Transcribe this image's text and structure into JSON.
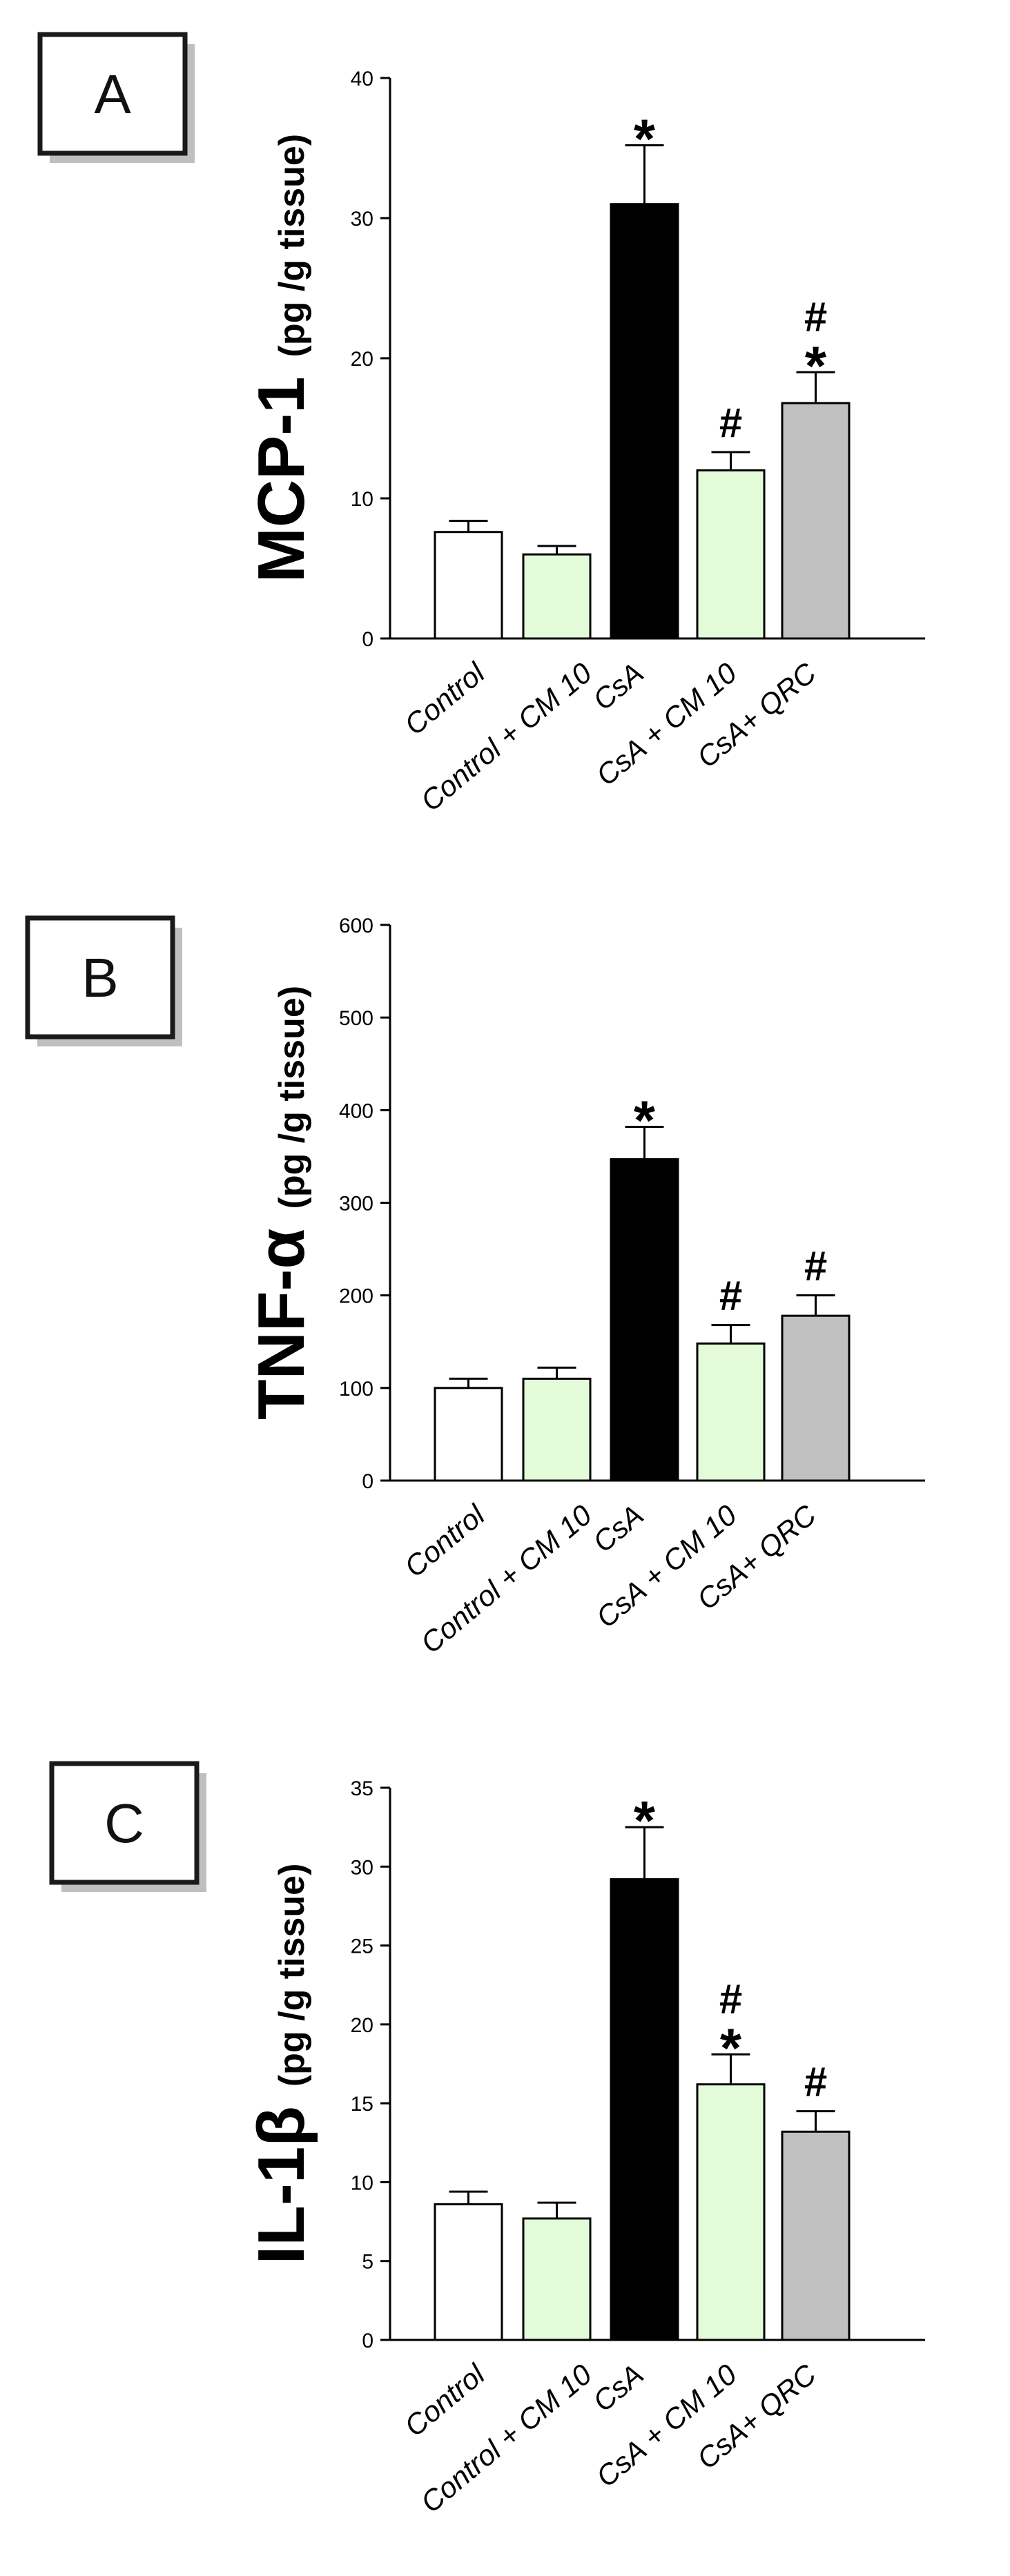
{
  "chart_data": [
    {
      "type": "bar",
      "panel": "A",
      "ylabel": "MCP-1",
      "ylabel_unit": "(pg /g tissue)",
      "ylim": [
        0,
        40
      ],
      "yticks": [
        "0",
        "10",
        "20",
        "30",
        "40"
      ],
      "ytick_values": [
        0,
        10,
        20,
        30,
        40
      ],
      "categories": [
        "Control",
        "Control + CM 10",
        "CsA",
        "CsA + CM 10",
        "CsA+ QRC"
      ],
      "values": [
        7.6,
        6.0,
        31.0,
        12.0,
        16.8
      ],
      "errors": [
        0.8,
        0.6,
        4.2,
        1.3,
        2.2
      ],
      "colors": [
        "#ffffff",
        "#e3fbd9",
        "#000000",
        "#e3fbd9",
        "#c0c0c0"
      ],
      "significance": [
        "",
        "",
        "*",
        "#",
        "#*"
      ]
    },
    {
      "type": "bar",
      "panel": "B",
      "ylabel": "TNF-α",
      "ylabel_unit": "(pg /g tissue)",
      "ylim": [
        0,
        600
      ],
      "yticks": [
        "0",
        "100",
        "200",
        "300",
        "400",
        "500",
        "600"
      ],
      "ytick_values": [
        0,
        100,
        200,
        300,
        400,
        500,
        600
      ],
      "categories": [
        "Control",
        "Control + CM 10",
        "CsA",
        "CsA + CM 10",
        "CsA+ QRC"
      ],
      "values": [
        100,
        110,
        347,
        148,
        178
      ],
      "errors": [
        10,
        12,
        35,
        20,
        22
      ],
      "colors": [
        "#ffffff",
        "#e3fbd9",
        "#000000",
        "#e3fbd9",
        "#c0c0c0"
      ],
      "significance": [
        "",
        "",
        "*",
        "#",
        "#"
      ]
    },
    {
      "type": "bar",
      "panel": "C",
      "ylabel": "IL-1β",
      "ylabel_unit": "(pg /g tissue)",
      "ylim": [
        0,
        35
      ],
      "yticks": [
        "0",
        "5",
        "10",
        "15",
        "20",
        "25",
        "30",
        "35"
      ],
      "ytick_values": [
        0,
        5,
        10,
        15,
        20,
        25,
        30,
        35
      ],
      "categories": [
        "Control",
        "Control + CM 10",
        "CsA",
        "CsA + CM 10",
        "CsA+ QRC"
      ],
      "values": [
        8.6,
        7.7,
        29.2,
        16.2,
        13.2
      ],
      "errors": [
        0.8,
        1.0,
        3.3,
        1.9,
        1.3
      ],
      "colors": [
        "#ffffff",
        "#e3fbd9",
        "#000000",
        "#e3fbd9",
        "#c0c0c0"
      ],
      "significance": [
        "",
        "",
        "*",
        "#*",
        "#"
      ]
    }
  ]
}
